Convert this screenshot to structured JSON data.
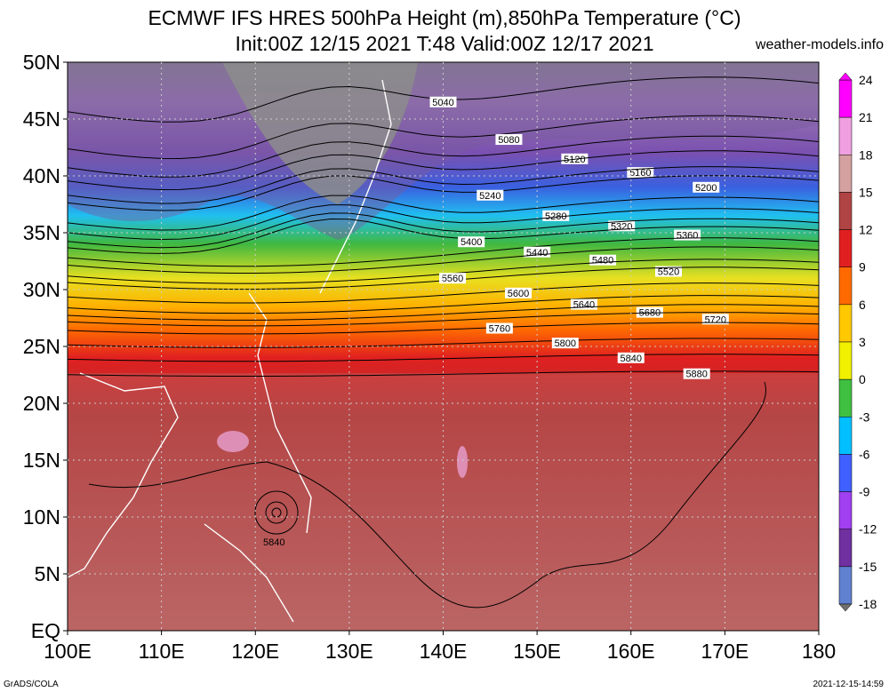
{
  "header": {
    "title_line1": "ECMWF IFS HRES 500hPa Height (m),850hPa Temperature (°C)",
    "title_line2": "Init:00Z 12/15 2021 T:48 Valid:00Z 12/17 2021",
    "site": "weather-models.info"
  },
  "footer": {
    "left": "GrADS/COLA",
    "right": "2021-12-15-14:59"
  },
  "map": {
    "lon_range": [
      100,
      180
    ],
    "lat_range": [
      0,
      50
    ],
    "lat_labels": [
      "50N",
      "45N",
      "40N",
      "35N",
      "30N",
      "25N",
      "20N",
      "15N",
      "10N",
      "5N",
      "EQ"
    ],
    "lon_labels": [
      "100E",
      "110E",
      "120E",
      "130E",
      "140E",
      "150E",
      "160E",
      "170E",
      "180"
    ],
    "colorbar": {
      "labels": [
        "24",
        "21",
        "18",
        "15",
        "12",
        "9",
        "6",
        "3",
        "0",
        "-3",
        "-6",
        "-9",
        "-12",
        "-15",
        "-18"
      ],
      "colors": [
        "#ff00ff",
        "#f0a0e0",
        "#d4a0a0",
        "#b04444",
        "#e02020",
        "#ff6a00",
        "#ffc800",
        "#f0f000",
        "#40c040",
        "#00c0ff",
        "#4060ff",
        "#a040f0",
        "#7030a0",
        "#6080d0",
        "#808080"
      ]
    },
    "contours": [
      {
        "label": "5040",
        "lat": 46.5
      },
      {
        "label": "5080",
        "lat": 43.2
      },
      {
        "label": "5120",
        "lat": 41.5
      },
      {
        "label": "5160",
        "lat": 40.3
      },
      {
        "label": "5200",
        "lat": 39.0
      },
      {
        "label": "5240",
        "lat": 38.3
      },
      {
        "label": "5280",
        "lat": 36.5
      },
      {
        "label": "5320",
        "lat": 35.6
      },
      {
        "label": "5360",
        "lat": 34.8
      },
      {
        "label": "5400",
        "lat": 34.2
      },
      {
        "label": "5440",
        "lat": 33.3
      },
      {
        "label": "5480",
        "lat": 32.6
      },
      {
        "label": "5520",
        "lat": 31.6
      },
      {
        "label": "5560",
        "lat": 31.0
      },
      {
        "label": "5600",
        "lat": 29.7
      },
      {
        "label": "5640",
        "lat": 28.7
      },
      {
        "label": "5680",
        "lat": 28.0
      },
      {
        "label": "5720",
        "lat": 27.4
      },
      {
        "label": "5760",
        "lat": 26.6
      },
      {
        "label": "5800",
        "lat": 25.3
      },
      {
        "label": "5840",
        "lat": 24.0
      },
      {
        "label": "5880",
        "lat": 22.6
      }
    ]
  }
}
